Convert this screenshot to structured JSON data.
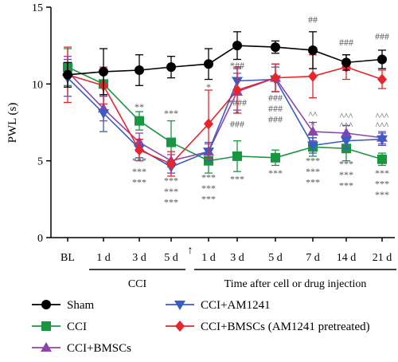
{
  "chart_data": {
    "type": "line",
    "ylabel": "PWL (s)",
    "ylim": [
      0,
      15
    ],
    "yticks": [
      0,
      5,
      10,
      15
    ],
    "categories": [
      "BL",
      "1 d",
      "3 d",
      "5 d",
      "1 d",
      "3 d",
      "5 d",
      "7 d",
      "14 d",
      "21 d"
    ],
    "groups": [
      {
        "label": "CCI",
        "from": 1,
        "to": 3
      },
      {
        "label": "Time after cell or drug injection",
        "from": 4,
        "to": 9
      }
    ],
    "arrow_marker": "↑",
    "series": [
      {
        "name": "Sham",
        "color": "#000000",
        "marker": "circle",
        "values": [
          10.6,
          10.8,
          10.9,
          11.1,
          11.3,
          12.5,
          12.4,
          12.2,
          11.4,
          11.6
        ],
        "errors": [
          0.8,
          1.5,
          1.0,
          0.7,
          1.0,
          0.9,
          0.4,
          1.2,
          0.5,
          0.6
        ]
      },
      {
        "name": "CCI",
        "color": "#1a9641",
        "marker": "square",
        "values": [
          11.1,
          10.0,
          7.6,
          6.2,
          5.0,
          5.3,
          5.2,
          5.9,
          5.8,
          5.1
        ],
        "errors": [
          1.2,
          0.8,
          0.6,
          1.4,
          0.8,
          1.0,
          0.5,
          0.6,
          0.8,
          0.4
        ]
      },
      {
        "name": "CCI+BMSCs",
        "color": "#8e44ad",
        "marker": "triangle-up",
        "values": [
          10.8,
          8.4,
          6.2,
          5.0,
          5.6,
          9.5,
          10.4,
          6.9,
          6.8,
          6.5
        ],
        "errors": [
          1.0,
          0.8,
          0.6,
          0.4,
          0.5,
          1.2,
          0.9,
          0.6,
          0.5,
          0.4
        ]
      },
      {
        "name": "CCI+AM1241",
        "color": "#3b5cc4",
        "marker": "triangle-down",
        "values": [
          10.4,
          8.1,
          5.8,
          4.6,
          5.6,
          10.2,
          10.3,
          6.0,
          6.3,
          6.4
        ],
        "errors": [
          1.2,
          1.2,
          0.6,
          0.4,
          0.6,
          0.8,
          0.8,
          0.5,
          0.5,
          0.4
        ]
      },
      {
        "name": "CCI+BMSCs (AM1241 pretreated)",
        "color": "#e8252a",
        "marker": "diamond",
        "values": [
          10.6,
          9.9,
          5.7,
          4.8,
          7.4,
          9.6,
          10.4,
          10.5,
          11.1,
          10.3
        ],
        "errors": [
          1.8,
          1.2,
          0.7,
          0.8,
          2.2,
          1.5,
          0.9,
          1.4,
          0.8,
          0.6
        ]
      }
    ],
    "annotations": [
      {
        "x": 2,
        "y": 8.3,
        "text": "**",
        "color": "#555555"
      },
      {
        "x": 3,
        "y": 7.9,
        "text": "***",
        "color": "#555555"
      },
      {
        "x": 2,
        "y": 4.8,
        "text": "***",
        "color": "#555555"
      },
      {
        "x": 2,
        "y": 4.1,
        "text": "***",
        "color": "#555555"
      },
      {
        "x": 2,
        "y": 3.4,
        "text": "***",
        "color": "#555555"
      },
      {
        "x": 3,
        "y": 3.5,
        "text": "***",
        "color": "#555555"
      },
      {
        "x": 3,
        "y": 2.8,
        "text": "***",
        "color": "#555555"
      },
      {
        "x": 3,
        "y": 2.1,
        "text": "***",
        "color": "#555555"
      },
      {
        "x": 4,
        "y": 9.6,
        "text": "*",
        "color": "#555555"
      },
      {
        "x": 4,
        "y": 3.7,
        "text": "***",
        "color": "#555555"
      },
      {
        "x": 4,
        "y": 3.0,
        "text": "***",
        "color": "#555555"
      },
      {
        "x": 4,
        "y": 2.3,
        "text": "***",
        "color": "#555555"
      },
      {
        "x": 5,
        "y": 11.0,
        "text": "*##",
        "color": "#555555"
      },
      {
        "x": 5,
        "y": 8.6,
        "text": "*###",
        "color": "#555555"
      },
      {
        "x": 5,
        "y": 7.9,
        "text": "*",
        "color": "#555555"
      },
      {
        "x": 5,
        "y": 7.2,
        "text": "###",
        "color": "#555555"
      },
      {
        "x": 5,
        "y": 3.6,
        "text": "***",
        "color": "#555555"
      },
      {
        "x": 6,
        "y": 8.9,
        "text": "###",
        "color": "#555555"
      },
      {
        "x": 6,
        "y": 8.2,
        "text": "###",
        "color": "#555555"
      },
      {
        "x": 6,
        "y": 7.5,
        "text": "###",
        "color": "#555555"
      },
      {
        "x": 6,
        "y": 4.0,
        "text": "***",
        "color": "#555555"
      },
      {
        "x": 7,
        "y": 14.0,
        "text": "##",
        "color": "#555555"
      },
      {
        "x": 7,
        "y": 7.8,
        "text": "^^",
        "color": "#555555"
      },
      {
        "x": 7,
        "y": 7.2,
        "text": "^",
        "color": "#555555"
      },
      {
        "x": 7,
        "y": 4.8,
        "text": "***",
        "color": "#555555"
      },
      {
        "x": 7,
        "y": 4.1,
        "text": "***",
        "color": "#555555"
      },
      {
        "x": 7,
        "y": 3.4,
        "text": "***",
        "color": "#555555"
      },
      {
        "x": 8,
        "y": 12.5,
        "text": "###",
        "color": "#555555"
      },
      {
        "x": 8,
        "y": 7.7,
        "text": "^^^",
        "color": "#555555"
      },
      {
        "x": 8,
        "y": 7.1,
        "text": "^^^",
        "color": "#555555"
      },
      {
        "x": 8,
        "y": 4.6,
        "text": "***",
        "color": "#555555"
      },
      {
        "x": 8,
        "y": 3.9,
        "text": "***",
        "color": "#555555"
      },
      {
        "x": 8,
        "y": 3.2,
        "text": "***",
        "color": "#555555"
      },
      {
        "x": 9,
        "y": 12.9,
        "text": "###",
        "color": "#555555"
      },
      {
        "x": 9,
        "y": 7.7,
        "text": "^^^",
        "color": "#555555"
      },
      {
        "x": 9,
        "y": 7.1,
        "text": "^^^",
        "color": "#555555"
      },
      {
        "x": 9,
        "y": 4.0,
        "text": "***",
        "color": "#555555"
      },
      {
        "x": 9,
        "y": 3.3,
        "text": "***",
        "color": "#555555"
      },
      {
        "x": 9,
        "y": 2.6,
        "text": "***",
        "color": "#555555"
      }
    ],
    "legend": {
      "placement": "bottom",
      "columns": 2
    }
  }
}
